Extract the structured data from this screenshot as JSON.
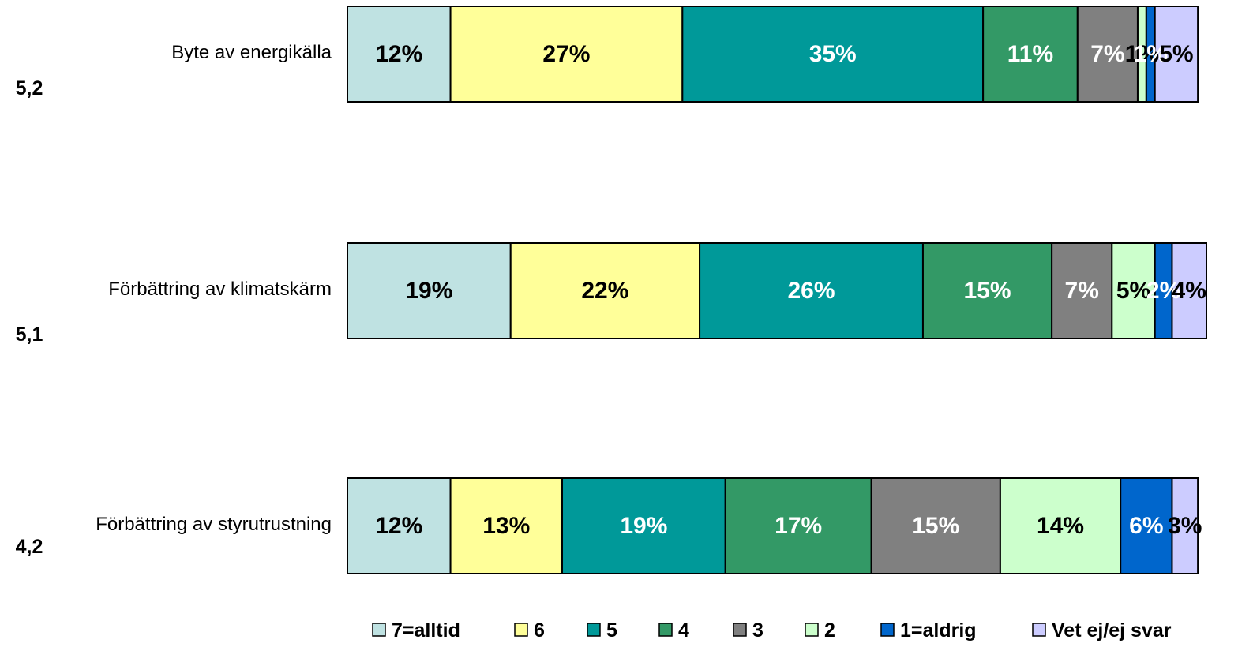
{
  "chart_data": {
    "type": "stacked-bar-horizontal",
    "categories": [
      "Byte av energikälla",
      "Förbättring av klimatskärm",
      "Förbättring av styrutrustning"
    ],
    "mean_labels": [
      "5,2",
      "5,1",
      "4,2"
    ],
    "xlim": [
      0,
      100
    ],
    "legend": "bottom",
    "series": [
      {
        "name": "7=alltid",
        "color": "#bfe2e2",
        "values": [
          12,
          19,
          12
        ],
        "value_labels": [
          "12%",
          "19%",
          "12%"
        ]
      },
      {
        "name": "6",
        "color": "#ffff99",
        "values": [
          27,
          22,
          13
        ],
        "value_labels": [
          "27%",
          "22%",
          "13%"
        ]
      },
      {
        "name": "5",
        "color": "#009999",
        "values": [
          35,
          26,
          19
        ],
        "value_labels": [
          "35%",
          "26%",
          "19%"
        ]
      },
      {
        "name": "4",
        "color": "#339966",
        "values": [
          11,
          15,
          17
        ],
        "value_labels": [
          "11%",
          "15%",
          "17%"
        ]
      },
      {
        "name": "3",
        "color": "#808080",
        "values": [
          7,
          7,
          15
        ],
        "value_labels": [
          "7%",
          "7%",
          "15%"
        ]
      },
      {
        "name": "2",
        "color": "#ccffcc",
        "values": [
          1,
          5,
          14
        ],
        "value_labels": [
          "1%",
          "5%",
          "14%"
        ]
      },
      {
        "name": "1=aldrig",
        "color": "#0066cc",
        "values": [
          1,
          2,
          6
        ],
        "value_labels": [
          "1%",
          "2%",
          "6%"
        ]
      },
      {
        "name": "Vet ej/ej svar",
        "color": "#ccccff",
        "values": [
          5,
          4,
          3
        ],
        "value_labels": [
          "5%",
          "4%",
          "3%"
        ]
      }
    ]
  }
}
